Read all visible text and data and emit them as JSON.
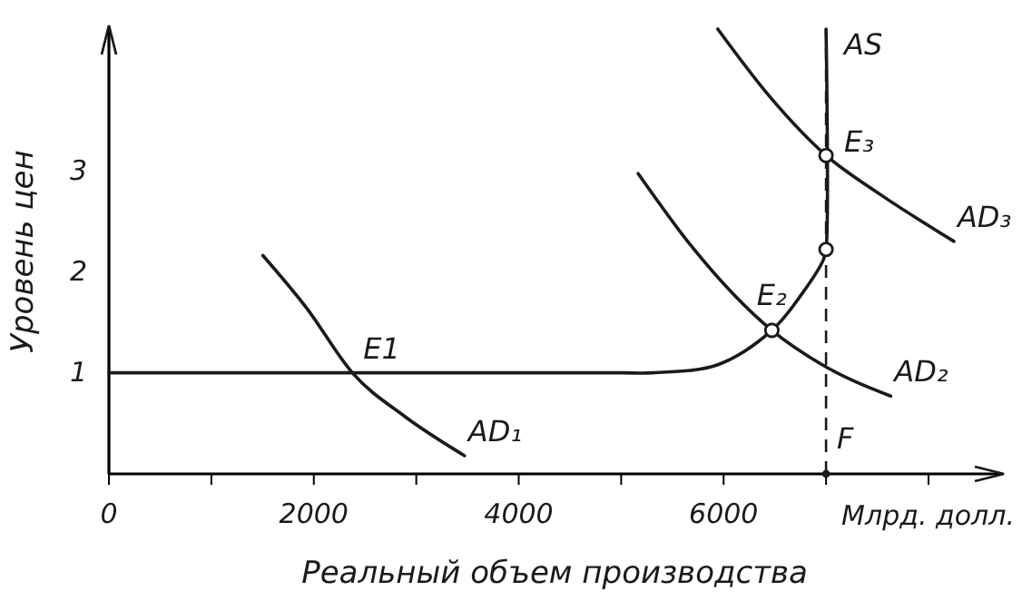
{
  "chart_data": {
    "type": "line",
    "xlabel": "Реальный объем производства",
    "ylabel": "Уровень цен",
    "xlim": [
      0,
      8700
    ],
    "ylim": [
      0,
      4.4
    ],
    "xticks": [
      0,
      {
        "value": 1000,
        "label": null
      },
      2000,
      {
        "value": 3000,
        "label": null
      },
      4000,
      {
        "value": 5000,
        "label": null
      },
      6000,
      {
        "value": 7000,
        "label": null
      },
      {
        "value": 8000,
        "label": null
      }
    ],
    "yticks": [
      1,
      2,
      3
    ],
    "grid": false,
    "line_style": "solid",
    "series": [
      {
        "name": "AD₁",
        "color": "#1a1a1a",
        "x": [
          1503,
          1930,
          2376,
          2885,
          3471
        ],
        "values": [
          2.16,
          1.64,
          1.0,
          0.57,
          0.18
        ]
      },
      {
        "name": "AD₂",
        "color": "#1a1a1a",
        "x": [
          5166,
          5688,
          6471,
          6962,
          7631
        ],
        "values": [
          2.97,
          2.25,
          1.42,
          1.08,
          0.77
        ]
      },
      {
        "name": "AD₃",
        "color": "#1a1a1a",
        "x": [
          5943,
          6452,
          7000,
          7535,
          8248
        ],
        "values": [
          4.4,
          3.73,
          3.15,
          2.76,
          2.3
        ]
      },
      {
        "name": "AS",
        "color": "#1a1a1a",
        "x": [
          0,
          2000,
          4000,
          5000,
          5306,
          5943,
          6471,
          6771,
          6975,
          7000,
          7000
        ],
        "values": [
          1,
          1,
          1,
          1,
          1,
          1.08,
          1.42,
          1.79,
          2.12,
          2.22,
          4.4
        ]
      },
      {
        "type": "scatter",
        "marker": "circle",
        "color": "#1a1a1a",
        "x": [
          6471,
          7000,
          7000
        ],
        "values": [
          1.42,
          2.22,
          3.15
        ]
      }
    ],
    "ref_lines": [
      {
        "axis": "x",
        "value": 7000,
        "label": "F",
        "line_style": "dashed",
        "color": "#1a1a1a"
      }
    ],
    "annotations": [
      {
        "text": "E1",
        "x": 2376,
        "y": 1
      },
      {
        "text": "E₂",
        "x": 6471,
        "y": 1.42
      },
      {
        "text": "E₃",
        "x": 7000,
        "y": 3.15
      },
      "Млрд. долл."
    ]
  }
}
